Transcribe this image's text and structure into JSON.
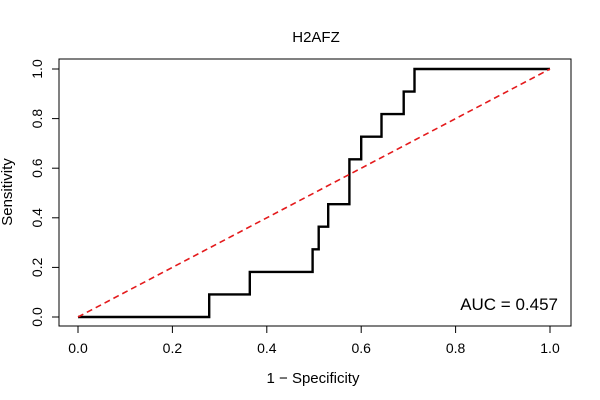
{
  "chart_data": {
    "type": "line",
    "title": "H2AFZ",
    "xlabel": "1 − Specificity",
    "ylabel": "Sensitivity",
    "xlim": [
      0,
      1
    ],
    "ylim": [
      0,
      1
    ],
    "x_ticks": [
      "0.0",
      "0.2",
      "0.4",
      "0.6",
      "0.8",
      "1.0"
    ],
    "y_ticks": [
      "0.0",
      "0.2",
      "0.4",
      "0.6",
      "0.8",
      "1.0"
    ],
    "grid": false,
    "legend": "none",
    "series": [
      {
        "style": "step",
        "color": "#000000",
        "points": [
          [
            0.0,
            0.0
          ],
          [
            0.278,
            0.0
          ],
          [
            0.278,
            0.091
          ],
          [
            0.364,
            0.091
          ],
          [
            0.364,
            0.182
          ],
          [
            0.497,
            0.182
          ],
          [
            0.497,
            0.273
          ],
          [
            0.51,
            0.273
          ],
          [
            0.51,
            0.364
          ],
          [
            0.53,
            0.364
          ],
          [
            0.53,
            0.455
          ],
          [
            0.575,
            0.455
          ],
          [
            0.575,
            0.636
          ],
          [
            0.6,
            0.636
          ],
          [
            0.6,
            0.727
          ],
          [
            0.643,
            0.727
          ],
          [
            0.643,
            0.818
          ],
          [
            0.69,
            0.818
          ],
          [
            0.69,
            0.909
          ],
          [
            0.713,
            0.909
          ],
          [
            0.713,
            1.0
          ],
          [
            1.0,
            1.0
          ]
        ]
      },
      {
        "style": "dashed",
        "color": "#e41a1c",
        "points": [
          [
            0,
            0
          ],
          [
            1,
            1
          ]
        ]
      }
    ],
    "annotations": [
      {
        "text": "AUC = 0.457",
        "position": "bottom-right"
      }
    ]
  }
}
